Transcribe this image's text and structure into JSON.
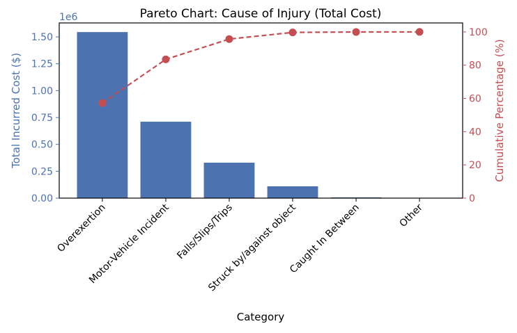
{
  "chart_data": {
    "type": "bar",
    "title": "Pareto Chart: Cause of Injury (Total Cost)",
    "xlabel": "Category",
    "ylabel": "Total Incurred Cost ($)",
    "y2label": "Cumulative Percentage (%)",
    "offset_label": "1e6",
    "categories": [
      "Overexertion",
      "Motor-Vehicle Incident",
      "Falls/Slips/Trips",
      "Struck by/against object",
      "Caught In Between",
      "Other"
    ],
    "series": [
      {
        "name": "Total Incurred Cost",
        "type": "bar",
        "axis": "left",
        "unit": "1e6 $",
        "values": [
          1.545,
          0.711,
          0.33,
          0.11,
          0.007,
          0.001
        ]
      },
      {
        "name": "Cumulative Percentage",
        "type": "line",
        "axis": "right",
        "values": [
          57.2,
          83.5,
          95.7,
          99.7,
          99.96,
          100
        ]
      }
    ],
    "ylim": [
      0,
      1.63
    ],
    "y2lim": [
      0,
      105.4
    ],
    "yticks": [
      "0.00",
      "0.25",
      "0.50",
      "0.75",
      "1.00",
      "1.25",
      "1.50"
    ],
    "y2ticks": [
      "0",
      "20",
      "40",
      "60",
      "80",
      "100"
    ],
    "colors": {
      "bar": "#4c72b0",
      "line": "#c44e52"
    },
    "grid": false
  }
}
